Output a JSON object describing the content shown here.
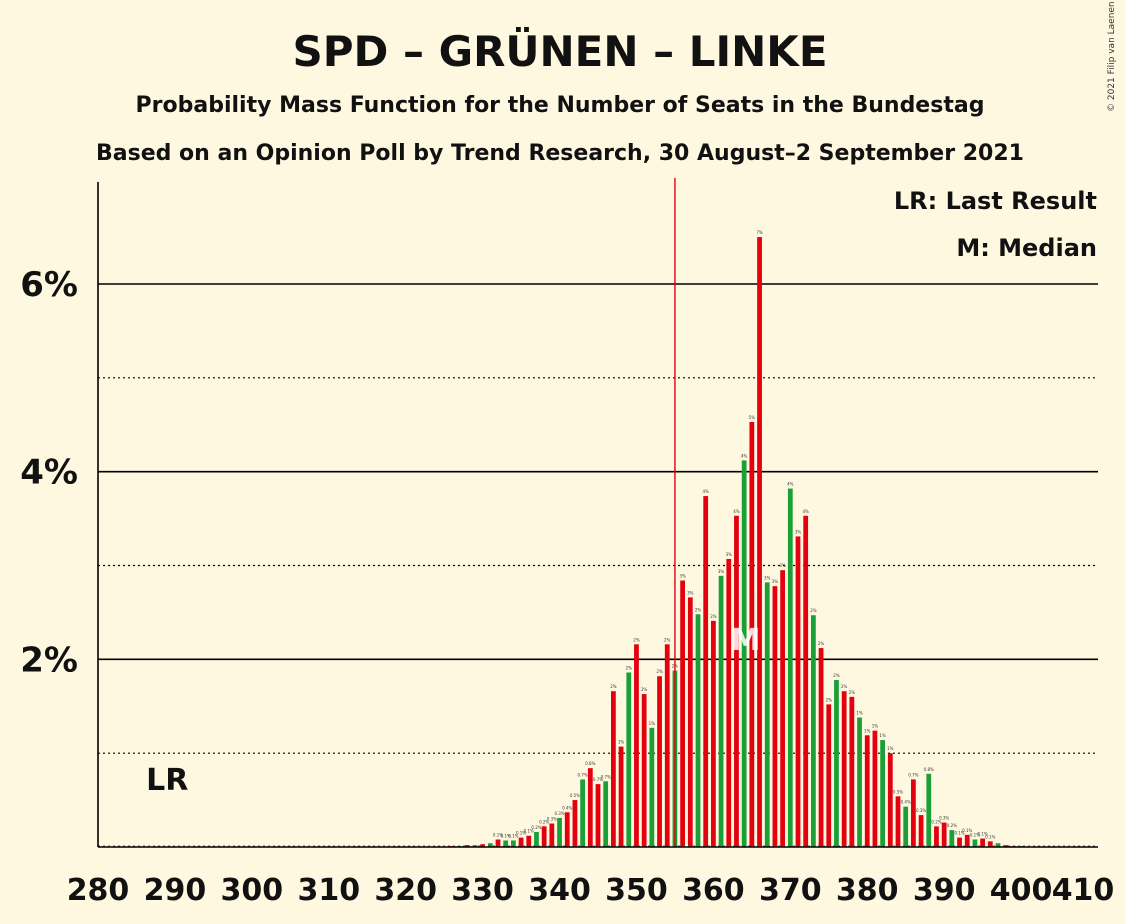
{
  "copyright": "© 2021 Filip van Laenen",
  "chart_data": {
    "type": "bar",
    "title": "SPD – GRÜNEN – LINKE",
    "subtitle1": "Probability Mass Function for the Number of Seats in the Bundestag",
    "subtitle2": "Based on an Opinion Poll by Trend Research, 30 August–2 September 2021",
    "legend": [
      "LR: Last Result",
      "M: Median"
    ],
    "xlim": [
      280,
      410
    ],
    "ylim": [
      0,
      7
    ],
    "x_ticks": [
      280,
      290,
      300,
      310,
      320,
      330,
      340,
      350,
      360,
      370,
      380,
      390,
      400,
      410
    ],
    "x_tick_labels": [
      "280",
      "290",
      "300",
      "310",
      "320",
      "330",
      "340",
      "350",
      "360",
      "370",
      "380",
      "390",
      "400",
      "410"
    ],
    "y_ticks": [
      2,
      4,
      6
    ],
    "y_tick_labels": [
      "2%",
      "4%",
      "6%"
    ],
    "y_dotted": [
      1,
      3,
      5
    ],
    "majority_line": 355,
    "last_result": 289,
    "last_result_label": "LR",
    "median": 366,
    "median_label": "M",
    "colors": {
      "red": "#E3000F",
      "green": "#1AA037",
      "majority": "#E3000F",
      "background": "#FFF8E1"
    },
    "bars": [
      {
        "x": 326,
        "v": 0.01,
        "c": "red"
      },
      {
        "x": 327,
        "v": 0.01,
        "c": "green"
      },
      {
        "x": 328,
        "v": 0.02,
        "c": "red"
      },
      {
        "x": 329,
        "v": 0.02,
        "c": "green"
      },
      {
        "x": 330,
        "v": 0.03,
        "c": "red"
      },
      {
        "x": 331,
        "v": 0.04,
        "c": "green"
      },
      {
        "x": 332,
        "v": 0.08,
        "c": "red"
      },
      {
        "x": 333,
        "v": 0.07,
        "c": "green"
      },
      {
        "x": 334,
        "v": 0.07,
        "c": "green"
      },
      {
        "x": 335,
        "v": 0.1,
        "c": "red"
      },
      {
        "x": 336,
        "v": 0.12,
        "c": "red"
      },
      {
        "x": 337,
        "v": 0.16,
        "c": "green"
      },
      {
        "x": 338,
        "v": 0.22,
        "c": "red"
      },
      {
        "x": 339,
        "v": 0.25,
        "c": "red"
      },
      {
        "x": 340,
        "v": 0.31,
        "c": "green"
      },
      {
        "x": 341,
        "v": 0.37,
        "c": "red"
      },
      {
        "x": 342,
        "v": 0.5,
        "c": "red"
      },
      {
        "x": 343,
        "v": 0.72,
        "c": "green"
      },
      {
        "x": 344,
        "v": 0.84,
        "c": "red"
      },
      {
        "x": 345,
        "v": 0.67,
        "c": "red"
      },
      {
        "x": 346,
        "v": 0.7,
        "c": "green"
      },
      {
        "x": 347,
        "v": 1.66,
        "c": "red"
      },
      {
        "x": 348,
        "v": 1.07,
        "c": "red"
      },
      {
        "x": 349,
        "v": 1.86,
        "c": "green"
      },
      {
        "x": 350,
        "v": 2.16,
        "c": "red"
      },
      {
        "x": 351,
        "v": 1.63,
        "c": "red"
      },
      {
        "x": 352,
        "v": 1.27,
        "c": "green"
      },
      {
        "x": 353,
        "v": 1.82,
        "c": "red"
      },
      {
        "x": 354,
        "v": 2.16,
        "c": "red"
      },
      {
        "x": 355,
        "v": 1.88,
        "c": "green"
      },
      {
        "x": 356,
        "v": 2.84,
        "c": "red"
      },
      {
        "x": 357,
        "v": 2.66,
        "c": "red"
      },
      {
        "x": 358,
        "v": 2.48,
        "c": "green"
      },
      {
        "x": 359,
        "v": 3.74,
        "c": "red"
      },
      {
        "x": 360,
        "v": 2.41,
        "c": "red"
      },
      {
        "x": 361,
        "v": 2.89,
        "c": "green"
      },
      {
        "x": 362,
        "v": 3.07,
        "c": "red"
      },
      {
        "x": 363,
        "v": 3.53,
        "c": "red"
      },
      {
        "x": 364,
        "v": 4.12,
        "c": "green"
      },
      {
        "x": 365,
        "v": 4.53,
        "c": "red"
      },
      {
        "x": 366,
        "v": 6.5,
        "c": "red"
      },
      {
        "x": 367,
        "v": 2.82,
        "c": "green"
      },
      {
        "x": 368,
        "v": 2.78,
        "c": "red"
      },
      {
        "x": 369,
        "v": 2.95,
        "c": "red"
      },
      {
        "x": 370,
        "v": 3.82,
        "c": "green"
      },
      {
        "x": 371,
        "v": 3.31,
        "c": "red"
      },
      {
        "x": 372,
        "v": 3.53,
        "c": "red"
      },
      {
        "x": 373,
        "v": 2.47,
        "c": "green"
      },
      {
        "x": 374,
        "v": 2.12,
        "c": "red"
      },
      {
        "x": 375,
        "v": 1.52,
        "c": "red"
      },
      {
        "x": 376,
        "v": 1.78,
        "c": "green"
      },
      {
        "x": 377,
        "v": 1.66,
        "c": "red"
      },
      {
        "x": 378,
        "v": 1.6,
        "c": "red"
      },
      {
        "x": 379,
        "v": 1.38,
        "c": "green"
      },
      {
        "x": 380,
        "v": 1.19,
        "c": "red"
      },
      {
        "x": 381,
        "v": 1.24,
        "c": "red"
      },
      {
        "x": 382,
        "v": 1.14,
        "c": "green"
      },
      {
        "x": 383,
        "v": 1.0,
        "c": "red"
      },
      {
        "x": 384,
        "v": 0.54,
        "c": "red"
      },
      {
        "x": 385,
        "v": 0.43,
        "c": "green"
      },
      {
        "x": 386,
        "v": 0.72,
        "c": "red"
      },
      {
        "x": 387,
        "v": 0.34,
        "c": "red"
      },
      {
        "x": 388,
        "v": 0.78,
        "c": "green"
      },
      {
        "x": 389,
        "v": 0.22,
        "c": "red"
      },
      {
        "x": 390,
        "v": 0.26,
        "c": "red"
      },
      {
        "x": 391,
        "v": 0.18,
        "c": "green"
      },
      {
        "x": 392,
        "v": 0.1,
        "c": "red"
      },
      {
        "x": 393,
        "v": 0.13,
        "c": "red"
      },
      {
        "x": 394,
        "v": 0.08,
        "c": "green"
      },
      {
        "x": 395,
        "v": 0.09,
        "c": "red"
      },
      {
        "x": 396,
        "v": 0.06,
        "c": "red"
      },
      {
        "x": 397,
        "v": 0.04,
        "c": "green"
      },
      {
        "x": 398,
        "v": 0.02,
        "c": "red"
      },
      {
        "x": 399,
        "v": 0.01,
        "c": "red"
      },
      {
        "x": 400,
        "v": 0.01,
        "c": "green"
      }
    ]
  }
}
